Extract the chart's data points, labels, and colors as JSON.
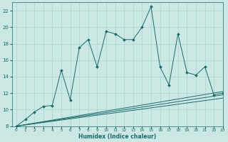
{
  "xlabel": "Humidex (Indice chaleur)",
  "background_color": "#cce8e4",
  "grid_color": "#aad4d0",
  "line_color": "#1a6b6b",
  "x": [
    0,
    1,
    2,
    3,
    4,
    5,
    6,
    7,
    8,
    9,
    10,
    11,
    12,
    13,
    14,
    15,
    16,
    17,
    18,
    19,
    20,
    21,
    22,
    23
  ],
  "y_main": [
    8.0,
    8.8,
    9.7,
    10.4,
    10.5,
    14.8,
    11.2,
    17.5,
    18.5,
    15.2,
    19.5,
    19.2,
    18.5,
    18.5,
    20.0,
    22.5,
    15.2,
    13.0,
    19.2,
    14.5,
    14.2,
    15.2,
    11.8,
    12.0
  ],
  "line1_start": 8.0,
  "line1_end": 12.2,
  "line2_start": 8.0,
  "line2_end": 11.8,
  "line3_start": 8.0,
  "line3_end": 11.4,
  "ylim": [
    8,
    23
  ],
  "xlim": [
    -0.5,
    23
  ],
  "yticks": [
    8,
    10,
    12,
    14,
    16,
    18,
    20,
    22
  ],
  "xticks": [
    0,
    1,
    2,
    3,
    4,
    5,
    6,
    7,
    8,
    9,
    10,
    11,
    12,
    13,
    14,
    15,
    16,
    17,
    18,
    19,
    20,
    21,
    22,
    23
  ]
}
